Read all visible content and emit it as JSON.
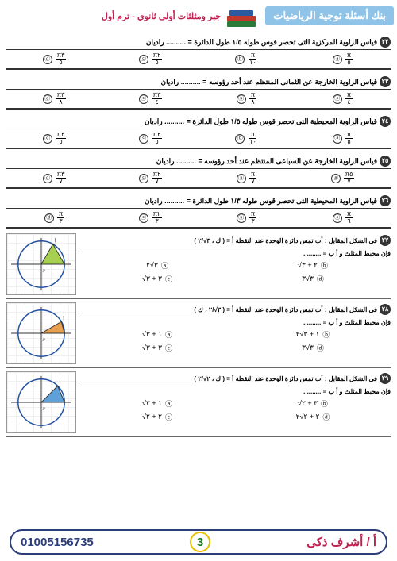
{
  "header": {
    "title": "بنك أسئلة توجية الرياضيات",
    "sub": "جبر ومثلثات أولى ثانوي - ترم أول"
  },
  "questions": [
    {
      "n": "٢٢",
      "text": "قياس الزاوية المركزية التى تحصر قوس طوله ١/٥ طول الدائرة = .......... راديان",
      "opts": [
        [
          "π",
          "٥"
        ],
        [
          "π",
          "١٠"
        ],
        [
          "π٢",
          "٥"
        ],
        [
          "π٣",
          "٥"
        ]
      ]
    },
    {
      "n": "٢٣",
      "text": "قياس الزاوية الخارجة عن الثمانى المنتظم عند أحد رؤوسه = .......... راديان",
      "opts": [
        [
          "π",
          "٤"
        ],
        [
          "π",
          "٨"
        ],
        [
          "π٣",
          "٤"
        ],
        [
          "π٣",
          "٨"
        ]
      ]
    },
    {
      "n": "٢٤",
      "text": "قياس الزاوية المحيطية التى تحصر قوس طوله ١/٥ طول الدائرة = .......... راديان",
      "opts": [
        [
          "π",
          "٥"
        ],
        [
          "π",
          "١٠"
        ],
        [
          "π٢",
          "٥"
        ],
        [
          "π٣",
          "٥"
        ]
      ]
    },
    {
      "n": "٢٥",
      "text": "قياس الزاوية الخارجة عن السباعى المنتظم عند أحد رؤوسه = .......... راديان",
      "opts": [
        [
          "π٥",
          "٧"
        ],
        [
          "π",
          "٧"
        ],
        [
          "π٢",
          "٧"
        ],
        [
          "π٣",
          "٧"
        ]
      ]
    },
    {
      "n": "٢٦",
      "text": "قياس الزاوية المحيطية التى تحصر قوس طوله ١/٣ طول الدائرة = .......... راديان",
      "opts": [
        [
          "π",
          "٦"
        ],
        [
          "π",
          "٣"
        ],
        [
          "π٢",
          "٣"
        ],
        [
          "π",
          "٣"
        ]
      ]
    }
  ],
  "figs": [
    {
      "n": "٢٧",
      "text": "فى الشكل المقابل : أب تمس دائرة الوحدة عند النقطة أ = ( ك ، ٣√/٢ )",
      "sub": "فإن محيط المثلث و أ ب = ..........",
      "rows": [
        [
          [
            "٣√٢",
            "ⓐ"
          ],
          [
            "٢ + ٣√",
            "ⓑ"
          ]
        ],
        [
          [
            "٣ + ٣√",
            "ⓒ"
          ],
          [
            "٣√٣",
            "ⓓ"
          ]
        ]
      ],
      "fill": "#a8d050",
      "angle": "60"
    },
    {
      "n": "٢٨",
      "text": "فى الشكل المقابل : أب تمس دائرة الوحدة عند النقطة أ = ( ٣√/٢ ، ك )",
      "sub": "فإن محيط المثلث و أ ب = ..........",
      "rows": [
        [
          [
            "١ + ٣√",
            "ⓐ"
          ],
          [
            "١ + ٣√٢",
            "ⓑ"
          ]
        ],
        [
          [
            "٣ + ٣√",
            "ⓒ"
          ],
          [
            "٣√٣",
            "ⓓ"
          ]
        ]
      ],
      "fill": "#e8a050",
      "angle": "30"
    },
    {
      "n": "٢٩",
      "text": "فى الشكل المقابل : أب تمس دائرة الوحدة عند النقطة أ = ( ك ، ٢√/٢ )",
      "sub": "فإن محيط المثلث و أ ب = ..........",
      "rows": [
        [
          [
            "١ + ٢√",
            "ⓐ"
          ],
          [
            "٣ + ٢√",
            "ⓑ"
          ]
        ],
        [
          [
            "٢ + ٢√",
            "ⓒ"
          ],
          [
            "٢ + ٢√٢",
            "ⓓ"
          ]
        ]
      ],
      "fill": "#60a0d8",
      "angle": "45"
    }
  ],
  "footer": {
    "name": "أ / أشرف ذكى",
    "page": "3",
    "phone": "01005156735"
  },
  "markers": [
    "ⓐ",
    "ⓑ",
    "ⓒ",
    "ⓓ"
  ]
}
